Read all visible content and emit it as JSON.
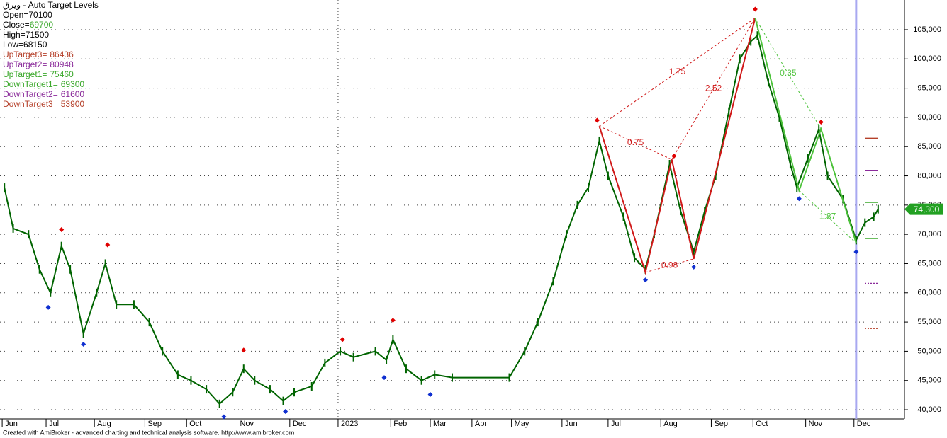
{
  "chart_data": {
    "type": "line",
    "title": "ویرق - Auto Target Levels",
    "quote": [
      {
        "label": "Open=",
        "value": 70100
      },
      {
        "label": "Close=",
        "value": 69700,
        "color": "#3aa82a"
      },
      {
        "label": "High=",
        "value": 71500
      },
      {
        "label": "Low=",
        "value": 68150
      }
    ],
    "targets": [
      {
        "label": "UpTarget3=",
        "value": 86436,
        "color": "#b5402a"
      },
      {
        "label": "UpTarget2=",
        "value": 80948,
        "color": "#8a2a9a"
      },
      {
        "label": "UpTarget1=",
        "value": 75460,
        "color": "#3aa82a"
      },
      {
        "label": "DownTarget1=",
        "value": 69300,
        "color": "#3aa82a"
      },
      {
        "label": "DownTarget2=",
        "value": 61600,
        "color": "#8a2a9a"
      },
      {
        "label": "DownTarget3=",
        "value": 53900,
        "color": "#b5402a"
      }
    ],
    "x": [
      2,
      6,
      13,
      18,
      23,
      28,
      32,
      38,
      44,
      48,
      53,
      61,
      68,
      74,
      81,
      87,
      94,
      100,
      106,
      111,
      116,
      123,
      129,
      134,
      142,
      148,
      155,
      161,
      171,
      176,
      179,
      185,
      192,
      198,
      206,
      232,
      239,
      245,
      252,
      258,
      263,
      268,
      273,
      277,
      284,
      289,
      294,
      298,
      305,
      310,
      316,
      321,
      326,
      332,
      337,
      342,
      345,
      350,
      355,
      360,
      363,
      368,
      373,
      377,
      384,
      390,
      394,
      398,
      400
    ],
    "series": [
      {
        "name": "Close",
        "color": "#006400",
        "values": [
          78000,
          71000,
          70000,
          64000,
          60000,
          68000,
          64000,
          53000,
          60000,
          65000,
          58000,
          58000,
          55000,
          50000,
          46000,
          45000,
          43500,
          41000,
          43000,
          47000,
          45000,
          43500,
          41500,
          43000,
          44000,
          48000,
          50000,
          49000,
          50000,
          48500,
          52000,
          47000,
          45000,
          46000,
          45500,
          45500,
          50000,
          55000,
          62000,
          70000,
          75000,
          78000,
          86000,
          80000,
          73000,
          66000,
          64000,
          70000,
          82000,
          74000,
          67000,
          74000,
          80000,
          91000,
          100000,
          103000,
          104000,
          96000,
          90000,
          82000,
          78000,
          83000,
          88000,
          80000,
          76000,
          69000,
          72000,
          73000,
          74300
        ]
      }
    ],
    "pivot_highs": {
      "color": "#e00000",
      "x": [
        28,
        49,
        111,
        156,
        179,
        272,
        307,
        344,
        374
      ],
      "values": [
        70800,
        68200,
        50200,
        52000,
        55300,
        89500,
        83400,
        108500,
        89200
      ]
    },
    "pivot_lows": {
      "color": "#1030d0",
      "x": [
        22,
        38,
        102,
        130,
        175,
        196,
        294,
        316,
        364,
        390
      ],
      "values": [
        57500,
        51200,
        38800,
        39700,
        45500,
        42600,
        62200,
        64400,
        76100,
        67000
      ]
    },
    "pattern_up": {
      "color": "#d01818",
      "x": [
        273,
        294,
        306,
        316,
        344
      ],
      "values": [
        88500,
        63500,
        82800,
        65800,
        107000
      ],
      "ratios": [
        "1.75",
        "0.75",
        "2.52",
        "0.98"
      ]
    },
    "pattern_down": {
      "color": "#4cc23a",
      "x": [
        344,
        364,
        374,
        390
      ],
      "values": [
        107000,
        77500,
        88000,
        68500
      ],
      "ratios": [
        "0.35",
        "1.87"
      ]
    },
    "last_price": {
      "value": 74300,
      "label": "74,300",
      "color": "#22a022"
    },
    "cursor_x": 390,
    "xlim": [
      0,
      412
    ],
    "xticks": [
      {
        "value": 1,
        "label": "Jun"
      },
      {
        "value": 21,
        "label": "Jul"
      },
      {
        "value": 43,
        "label": "Aug"
      },
      {
        "value": 66,
        "label": "Sep"
      },
      {
        "value": 85,
        "label": "Oct"
      },
      {
        "value": 108,
        "label": "Nov"
      },
      {
        "value": 132,
        "label": "Dec"
      },
      {
        "value": 154,
        "label": "2023"
      },
      {
        "value": 178,
        "label": "Feb"
      },
      {
        "value": 196,
        "label": "Mar"
      },
      {
        "value": 215,
        "label": "Apr"
      },
      {
        "value": 233,
        "label": "May"
      },
      {
        "value": 256,
        "label": "Jun"
      },
      {
        "value": 277,
        "label": "Jul"
      },
      {
        "value": 301,
        "label": "Aug"
      },
      {
        "value": 324,
        "label": "Sep"
      },
      {
        "value": 343,
        "label": "Oct"
      },
      {
        "value": 367,
        "label": "Nov"
      },
      {
        "value": 389,
        "label": "Dec"
      }
    ],
    "ylim": [
      38430,
      110080
    ],
    "yticks": [
      {
        "value": 40000,
        "label": "40,000"
      },
      {
        "value": 45000,
        "label": "45,000"
      },
      {
        "value": 50000,
        "label": "50,000"
      },
      {
        "value": 55000,
        "label": "55,000"
      },
      {
        "value": 60000,
        "label": "60,000"
      },
      {
        "value": 65000,
        "label": "65,000"
      },
      {
        "value": 70000,
        "label": "70,000"
      },
      {
        "value": 75000,
        "label": "75,000"
      },
      {
        "value": 80000,
        "label": "80,000"
      },
      {
        "value": 85000,
        "label": "85,000"
      },
      {
        "value": 90000,
        "label": "90,000"
      },
      {
        "value": 95000,
        "label": "95,000"
      },
      {
        "value": 100000,
        "label": "100,000"
      },
      {
        "value": 105000,
        "label": "105,000"
      }
    ],
    "grid": true,
    "footer": "Created with AmiBroker - advanced charting and technical analysis software. http://www.amibroker.com"
  }
}
